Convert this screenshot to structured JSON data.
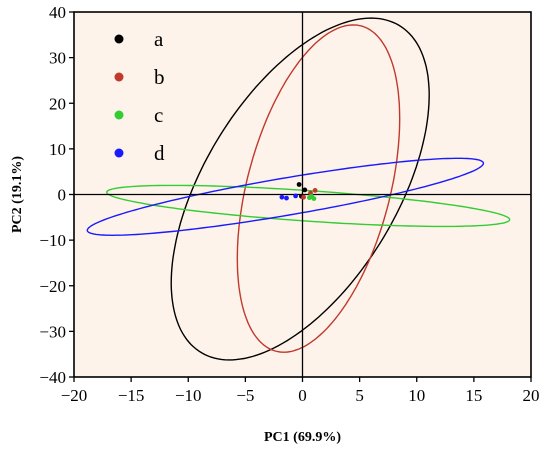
{
  "chart_data": {
    "type": "scatter",
    "title": "",
    "xlabel": "PC1 (69.9%)",
    "ylabel": "PC2 (19.1%)",
    "xlim": [
      -20,
      20
    ],
    "ylim": [
      -40,
      40
    ],
    "x_ticks": [
      -20,
      -15,
      -10,
      -5,
      0,
      5,
      10,
      15,
      20
    ],
    "y_ticks": [
      -40,
      -30,
      -20,
      -10,
      0,
      10,
      20,
      30,
      40
    ],
    "x_tick_labels": [
      "−20",
      "−15",
      "−10",
      "−5",
      "0",
      "5",
      "10",
      "15",
      "20"
    ],
    "y_tick_labels": [
      "−40",
      "−30",
      "−20",
      "−10",
      "0",
      "10",
      "20",
      "30",
      "40"
    ],
    "grid": false,
    "plot_background": "#fdf3ea",
    "legend": {
      "placement": "top-left",
      "entries": [
        "a",
        "b",
        "c",
        "d"
      ]
    },
    "series": [
      {
        "name": "a",
        "color": "#000000",
        "points": [
          [
            -0.3,
            2.2
          ],
          [
            0.2,
            1.0
          ],
          [
            -0.1,
            -0.4
          ]
        ],
        "ellipse": {
          "center": [
            -0.2,
            1.2
          ],
          "semi_major": 38.0,
          "semi_minor": 9.3,
          "angle_deg": 80
        }
      },
      {
        "name": "b",
        "color": "#c0392b",
        "points": [
          [
            1.1,
            0.9
          ],
          [
            0.7,
            0.3
          ],
          [
            0.1,
            -0.6
          ]
        ],
        "ellipse": {
          "center": [
            1.4,
            1.3
          ],
          "semi_major": 36.0,
          "semi_minor": 6.4,
          "angle_deg": 85
        }
      },
      {
        "name": "c",
        "color": "#33cc33",
        "points": [
          [
            0.6,
            -0.7
          ],
          [
            1.0,
            -0.9
          ],
          [
            0.8,
            -0.4
          ]
        ],
        "ellipse": {
          "center": [
            0.5,
            -2.5
          ],
          "semi_major": 17.9,
          "semi_minor": 3.3,
          "angle_deg": -10
        }
      },
      {
        "name": "d",
        "color": "#1a1aff",
        "points": [
          [
            -1.8,
            -0.6
          ],
          [
            -1.4,
            -0.8
          ],
          [
            -0.6,
            -0.3
          ]
        ],
        "ellipse": {
          "center": [
            -1.5,
            -0.5
          ],
          "semi_major": 18.9,
          "semi_minor": 3.8,
          "angle_deg": 24
        }
      }
    ]
  }
}
